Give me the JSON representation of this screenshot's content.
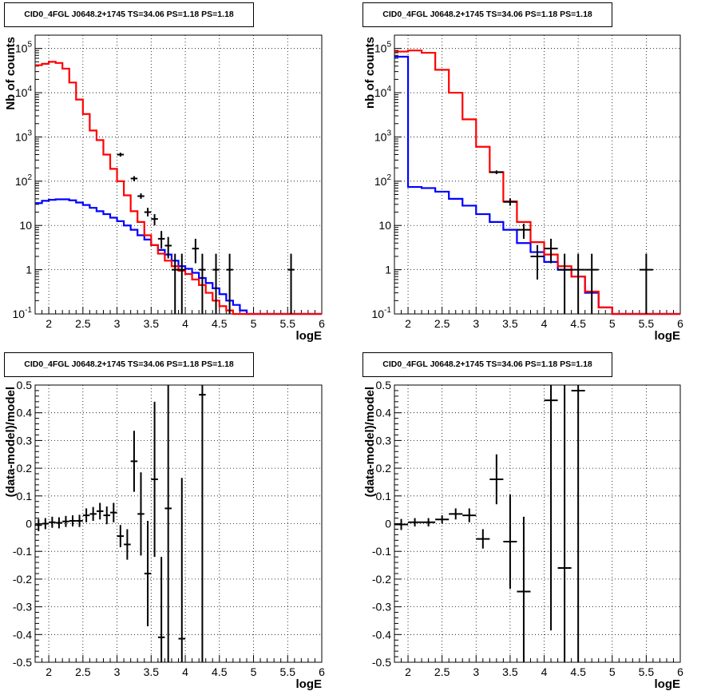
{
  "colors": {
    "data": "#000000",
    "model": "#ff0000",
    "source": "#0000ff",
    "grid": "#000000"
  },
  "chart_data": [
    {
      "type": "line",
      "title": "CID0_4FGL J0648.2+1745 TS=34.06 PS=1.18 PS=1.18",
      "xlabel": "logE",
      "ylabel": "Nb of counts",
      "log_y": true,
      "xlim": [
        1.8,
        6.0
      ],
      "ylim": [
        0.1,
        200000
      ],
      "xticks": [
        "2",
        "2.5",
        "3",
        "3.5",
        "4",
        "4.5",
        "5",
        "5.5",
        "6"
      ],
      "yticks": [
        "10^{-1}",
        "1",
        "10",
        "10^{2}",
        "10^{3}",
        "10^{4}",
        "10^{5}"
      ],
      "grid": true,
      "bin_edges": [
        1.8,
        1.9,
        2.0,
        2.1,
        2.2,
        2.3,
        2.4,
        2.5,
        2.6,
        2.7,
        2.8,
        2.9,
        3.0,
        3.1,
        3.2,
        3.3,
        3.4,
        3.5,
        3.6,
        3.7,
        3.8,
        3.9,
        4.0,
        4.1,
        4.2,
        4.3,
        4.4,
        4.5,
        4.6,
        4.7,
        4.8,
        4.9,
        5.0,
        5.1,
        5.2,
        5.3,
        5.4,
        5.5,
        5.6,
        5.7,
        5.8,
        5.9,
        6.0
      ],
      "series": [
        {
          "name": "",
          "role": "model",
          "values": [
            42000,
            45000,
            50000,
            47000,
            35000,
            17000,
            7000,
            3300,
            1400,
            850,
            400,
            190,
            100,
            48,
            21,
            12,
            6,
            3.6,
            2.3,
            1.6,
            1.2,
            0.95,
            0.8,
            0.6,
            0.45,
            0.3,
            0.2,
            0.15,
            0.12,
            0.1,
            0.1,
            0.1,
            0.1,
            0.1,
            0.1,
            0.1,
            0.1,
            0.1,
            0.1,
            0.1,
            0.1,
            0.1
          ]
        },
        {
          "name": "",
          "role": "source",
          "values": [
            32,
            36,
            38,
            39,
            39,
            37,
            33,
            29,
            25,
            21,
            18,
            15,
            12.5,
            10,
            8,
            6,
            4.8,
            3.6,
            2.8,
            2.2,
            1.6,
            1.2,
            1.05,
            0.85,
            0.65,
            0.5,
            0.38,
            0.28,
            0.2,
            0.16,
            0.12,
            0.1,
            0.1,
            0.1,
            0.1,
            0.1,
            0.1,
            0.1,
            0.1,
            0.1,
            0.1,
            0.1
          ]
        }
      ],
      "data_points": [
        {
          "x": 3.05,
          "y": 400,
          "ylo": 360,
          "yhi": 440
        },
        {
          "x": 3.25,
          "y": 115,
          "ylo": 100,
          "yhi": 130
        },
        {
          "x": 3.35,
          "y": 46,
          "ylo": 40,
          "yhi": 53
        },
        {
          "x": 3.45,
          "y": 20,
          "ylo": 16,
          "yhi": 25
        },
        {
          "x": 3.55,
          "y": 14,
          "ylo": 10,
          "yhi": 18
        },
        {
          "x": 3.65,
          "y": 5,
          "ylo": 3,
          "yhi": 7.5
        },
        {
          "x": 3.75,
          "y": 3.5,
          "ylo": 1.8,
          "yhi": 5.5
        },
        {
          "x": 3.85,
          "y": 1,
          "ylo": 0.1,
          "yhi": 2.3
        },
        {
          "x": 3.95,
          "y": 1,
          "ylo": 0.1,
          "yhi": 2.3
        },
        {
          "x": 4.15,
          "y": 3,
          "ylo": 1.4,
          "yhi": 5
        },
        {
          "x": 4.25,
          "y": 1,
          "ylo": 0.1,
          "yhi": 2.3
        },
        {
          "x": 4.45,
          "y": 1,
          "ylo": 0.1,
          "yhi": 2.3
        },
        {
          "x": 4.65,
          "y": 1,
          "ylo": 0.1,
          "yhi": 2.3
        },
        {
          "x": 5.55,
          "y": 1,
          "ylo": 0.1,
          "yhi": 2.3
        }
      ]
    },
    {
      "type": "line",
      "title": "CID0_4FGL J0648.2+1745 TS=34.06 PS=1.18 PS=1.18",
      "xlabel": "logE",
      "ylabel": "nb of counts",
      "log_y": true,
      "xlim": [
        1.8,
        6.0
      ],
      "ylim": [
        0.1,
        200000
      ],
      "xticks": [
        "2",
        "2.5",
        "3",
        "3.5",
        "4",
        "4.5",
        "5",
        "5.5",
        "6"
      ],
      "yticks": [
        "10^{-1}",
        "1",
        "10",
        "10^{2}",
        "10^{3}",
        "10^{4}",
        "10^{5}"
      ],
      "grid": true,
      "bin_edges": [
        1.8,
        2.0,
        2.2,
        2.4,
        2.6,
        2.8,
        3.0,
        3.2,
        3.4,
        3.6,
        3.8,
        4.0,
        4.2,
        4.4,
        4.6,
        4.8,
        5.0,
        5.2,
        5.4,
        5.6,
        5.8,
        6.0
      ],
      "series": [
        {
          "name": "",
          "role": "model",
          "values": [
            85000,
            90000,
            80000,
            33000,
            10000,
            2500,
            600,
            160,
            35,
            12,
            4.2,
            2.2,
            1.2,
            0.7,
            0.32,
            0.14,
            0.1,
            0.1,
            0.1,
            0.1,
            0.1
          ]
        },
        {
          "name": "",
          "role": "source",
          "values": [
            65000,
            74,
            70,
            58,
            40,
            28,
            18,
            12,
            8,
            4,
            2.5,
            1.5,
            1,
            0.7,
            0.3,
            0.14,
            0.1,
            0.1,
            0.1,
            0.1,
            0.1
          ]
        }
      ],
      "data_points": [
        {
          "x": 3.3,
          "y": 160,
          "ylo": 145,
          "yhi": 175
        },
        {
          "x": 3.5,
          "y": 34,
          "ylo": 28,
          "yhi": 41
        },
        {
          "x": 3.7,
          "y": 8,
          "ylo": 5,
          "yhi": 11
        },
        {
          "x": 3.9,
          "y": 2,
          "ylo": 0.6,
          "yhi": 3.6
        },
        {
          "x": 4.1,
          "y": 3,
          "ylo": 1.4,
          "yhi": 5
        },
        {
          "x": 4.3,
          "y": 1,
          "ylo": 0.1,
          "yhi": 2.3
        },
        {
          "x": 4.5,
          "y": 1,
          "ylo": 0.1,
          "yhi": 2.3
        },
        {
          "x": 4.7,
          "y": 1,
          "ylo": 0.1,
          "yhi": 2.3
        },
        {
          "x": 5.5,
          "y": 1,
          "ylo": 0.1,
          "yhi": 2.3
        }
      ]
    },
    {
      "type": "scatter",
      "title": "CID0_4FGL J0648.2+1745 TS=34.06 PS=1.18 PS=1.18",
      "xlabel": "logE",
      "ylabel": "(data-model)/model",
      "xlim": [
        1.8,
        6.0
      ],
      "ylim": [
        -0.5,
        0.5
      ],
      "xticks": [
        "2",
        "2.5",
        "3",
        "3.5",
        "4",
        "4.5",
        "5",
        "5.5",
        "6"
      ],
      "yticks": [
        "-0.5",
        "-0.4",
        "-0.3",
        "-0.2",
        "-0.1",
        "0",
        "0.1",
        "0.2",
        "0.3",
        "0.4",
        "0.5"
      ],
      "grid": true,
      "bin_width": 0.1,
      "data_points": [
        {
          "x": 1.85,
          "y": -0.005,
          "err": 0.022
        },
        {
          "x": 1.95,
          "y": 0.0,
          "err": 0.02
        },
        {
          "x": 2.05,
          "y": 0.005,
          "err": 0.02
        },
        {
          "x": 2.15,
          "y": 0.003,
          "err": 0.02
        },
        {
          "x": 2.25,
          "y": 0.008,
          "err": 0.02
        },
        {
          "x": 2.35,
          "y": 0.01,
          "err": 0.02
        },
        {
          "x": 2.45,
          "y": 0.01,
          "err": 0.022
        },
        {
          "x": 2.55,
          "y": 0.03,
          "err": 0.025
        },
        {
          "x": 2.65,
          "y": 0.035,
          "err": 0.025
        },
        {
          "x": 2.75,
          "y": 0.045,
          "err": 0.03
        },
        {
          "x": 2.85,
          "y": 0.03,
          "err": 0.032
        },
        {
          "x": 2.95,
          "y": 0.04,
          "err": 0.035
        },
        {
          "x": 3.05,
          "y": -0.045,
          "err": 0.04
        },
        {
          "x": 3.15,
          "y": -0.075,
          "err": 0.055
        },
        {
          "x": 3.25,
          "y": 0.225,
          "err": 0.11
        },
        {
          "x": 3.35,
          "y": 0.035,
          "err": 0.15
        },
        {
          "x": 3.45,
          "y": -0.18,
          "err": 0.19
        },
        {
          "x": 3.55,
          "y": 0.16,
          "err": 0.28
        },
        {
          "x": 3.65,
          "y": -0.41,
          "err": 0.29
        },
        {
          "x": 3.75,
          "y": 0.055,
          "err": 0.6
        },
        {
          "x": 3.95,
          "y": -0.415,
          "err": 0.58
        },
        {
          "x": 4.25,
          "y": 0.465,
          "err": 1.0
        }
      ]
    },
    {
      "type": "scatter",
      "title": "CID0_4FGL J0648.2+1745 TS=34.06 PS=1.18 PS=1.18",
      "xlabel": "logE",
      "ylabel": "(data-model)/model",
      "xlim": [
        1.8,
        6.0
      ],
      "ylim": [
        -0.5,
        0.5
      ],
      "xticks": [
        "2",
        "2.5",
        "3",
        "3.5",
        "4",
        "4.5",
        "5",
        "5.5",
        "6"
      ],
      "yticks": [
        "-0.5",
        "-0.4",
        "-0.3",
        "-0.2",
        "-0.1",
        "0",
        "0.1",
        "0.2",
        "0.3",
        "0.4",
        "0.5"
      ],
      "grid": true,
      "bin_width": 0.2,
      "data_points": [
        {
          "x": 1.9,
          "y": -0.003,
          "err": 0.02
        },
        {
          "x": 2.1,
          "y": 0.005,
          "err": 0.015
        },
        {
          "x": 2.3,
          "y": 0.005,
          "err": 0.015
        },
        {
          "x": 2.5,
          "y": 0.015,
          "err": 0.015
        },
        {
          "x": 2.7,
          "y": 0.035,
          "err": 0.02
        },
        {
          "x": 2.9,
          "y": 0.03,
          "err": 0.025
        },
        {
          "x": 3.1,
          "y": -0.055,
          "err": 0.035
        },
        {
          "x": 3.3,
          "y": 0.16,
          "err": 0.09
        },
        {
          "x": 3.5,
          "y": -0.065,
          "err": 0.17
        },
        {
          "x": 3.7,
          "y": -0.245,
          "err": 0.27
        },
        {
          "x": 4.1,
          "y": 0.445,
          "err": 0.83
        },
        {
          "x": 4.3,
          "y": -0.16,
          "err": 1.0
        },
        {
          "x": 4.5,
          "y": 0.48,
          "err": 1.0
        }
      ]
    }
  ]
}
